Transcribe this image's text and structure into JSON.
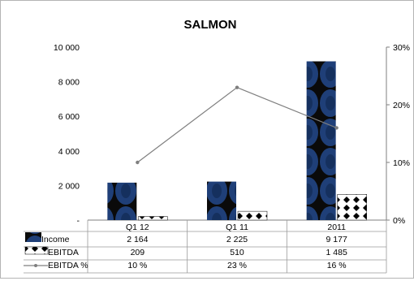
{
  "chart_data": {
    "type": "bar",
    "title": "SALMON",
    "categories": [
      "Q1 12",
      "Q1 11",
      "2011"
    ],
    "series": [
      {
        "name": "Income",
        "kind": "bar",
        "axis": "left",
        "values": [
          2164,
          2225,
          9177
        ],
        "value_labels": [
          "2 164",
          "2 225",
          "9 177"
        ],
        "pattern": "navy-black-circles"
      },
      {
        "name": "EBITDA",
        "kind": "bar",
        "axis": "left",
        "values": [
          209,
          510,
          1485
        ],
        "value_labels": [
          "209",
          "510",
          "1 485"
        ],
        "pattern": "white-black-diamonds"
      },
      {
        "name": "EBITDA %",
        "kind": "line",
        "axis": "right",
        "values": [
          10,
          23,
          16
        ],
        "value_labels": [
          "10 %",
          "23 %",
          "16 %"
        ],
        "color": "#7f7f7f"
      }
    ],
    "left_axis": {
      "ylim": [
        0,
        10000
      ],
      "ticks": [
        0,
        2000,
        4000,
        6000,
        8000,
        10000
      ],
      "tick_labels": [
        "-",
        "2 000",
        "4 000",
        "6 000",
        "8 000",
        "10 000"
      ]
    },
    "right_axis": {
      "ylim": [
        0,
        30
      ],
      "ticks": [
        0,
        10,
        20,
        30
      ],
      "tick_labels": [
        "0%",
        "10%",
        "20%",
        "30%"
      ]
    },
    "grid": false,
    "legend": "data-table below chart"
  }
}
